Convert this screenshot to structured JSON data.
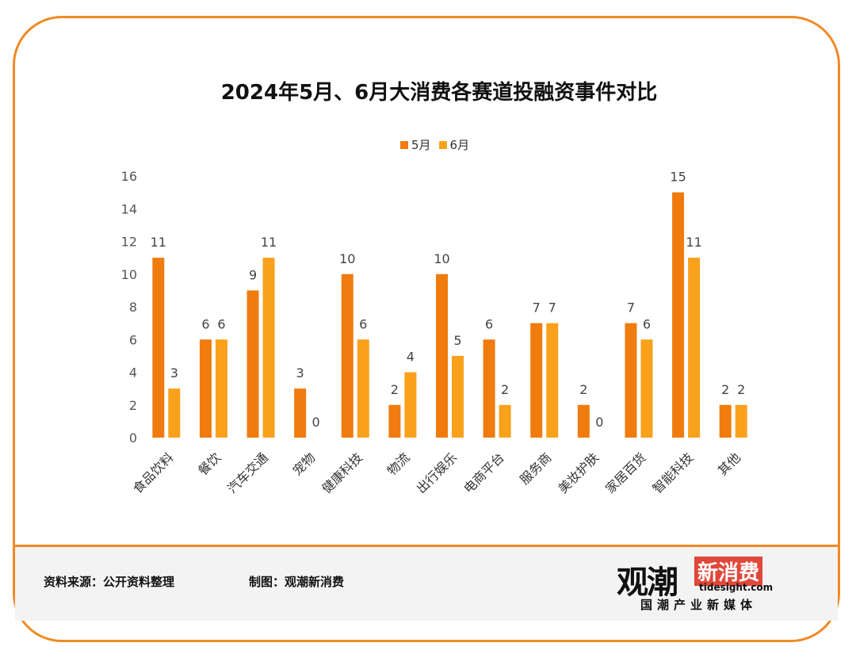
{
  "title": "2024年5月、6月大消费各赛道投融资事件对比",
  "footer": {
    "source": "资料来源：公开资料整理",
    "credit": "制图：观潮新消费"
  },
  "logo": {
    "cn_left": "观潮",
    "cn_right": "新消费",
    "domain": "tidesight.com",
    "sub": "国潮产业新媒体"
  },
  "colors": {
    "may": "#F07B0E",
    "june": "#F9A11B",
    "border": "#F08A24"
  },
  "chart_data": {
    "type": "bar",
    "title": "2024年5月、6月大消费各赛道投融资事件对比",
    "xlabel": "",
    "ylabel": "",
    "ylim": [
      0,
      16
    ],
    "yticks": [
      0,
      2,
      4,
      6,
      8,
      10,
      12,
      14,
      16
    ],
    "grid": false,
    "legend": "top",
    "categories": [
      "食品饮料",
      "餐饮",
      "汽车交通",
      "宠物",
      "健康科技",
      "物流",
      "出行娱乐",
      "电商平台",
      "服务商",
      "美妆护肤",
      "家居百货",
      "智能科技",
      "其他"
    ],
    "series": [
      {
        "name": "5月",
        "values": [
          11,
          6,
          9,
          3,
          10,
          2,
          10,
          6,
          7,
          2,
          7,
          15,
          2
        ]
      },
      {
        "name": "6月",
        "values": [
          3,
          6,
          11,
          0,
          6,
          4,
          5,
          2,
          7,
          0,
          6,
          11,
          2
        ]
      }
    ]
  }
}
